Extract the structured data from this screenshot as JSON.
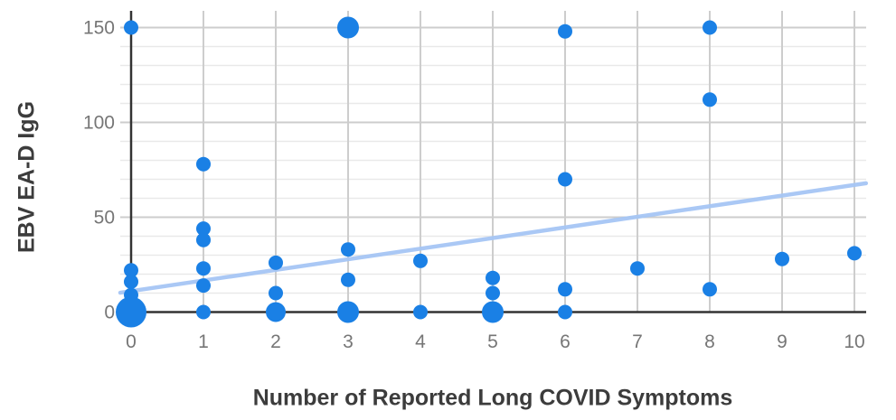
{
  "chart_data": {
    "type": "scatter",
    "xlabel": "Number of Reported Long COVID Symptoms",
    "ylabel": "EBV EA-D IgG",
    "x_ticks": [
      0,
      1,
      2,
      3,
      4,
      5,
      6,
      7,
      8,
      9,
      10
    ],
    "y_ticks": [
      0,
      50,
      100,
      150
    ],
    "xlim": [
      -0.15,
      10.16
    ],
    "ylim": [
      -3,
      159
    ],
    "grid": {
      "horizontal_major": [
        50,
        100,
        150
      ],
      "horizontal_minor": [
        10,
        20,
        30,
        40,
        60,
        70,
        80,
        90,
        110,
        120,
        130,
        140
      ],
      "vertical_major": [
        1,
        2,
        3,
        4,
        5,
        6,
        7,
        8,
        9,
        10
      ]
    },
    "legend": "none",
    "points": [
      {
        "x": 0,
        "y": 150,
        "size": 8
      },
      {
        "x": 0,
        "y": 22,
        "size": 8
      },
      {
        "x": 0,
        "y": 16,
        "size": 8
      },
      {
        "x": 0,
        "y": 9,
        "size": 8
      },
      {
        "x": 0,
        "y": 0,
        "size": 17
      },
      {
        "x": 1,
        "y": 78,
        "size": 8
      },
      {
        "x": 1,
        "y": 44,
        "size": 8
      },
      {
        "x": 1,
        "y": 38,
        "size": 8
      },
      {
        "x": 1,
        "y": 23,
        "size": 8
      },
      {
        "x": 1,
        "y": 14,
        "size": 8
      },
      {
        "x": 1,
        "y": 0,
        "size": 8
      },
      {
        "x": 2,
        "y": 26,
        "size": 8
      },
      {
        "x": 2,
        "y": 10,
        "size": 8
      },
      {
        "x": 2,
        "y": 0,
        "size": 11
      },
      {
        "x": 3,
        "y": 150,
        "size": 12
      },
      {
        "x": 3,
        "y": 33,
        "size": 8
      },
      {
        "x": 3,
        "y": 17,
        "size": 8
      },
      {
        "x": 3,
        "y": 0,
        "size": 12
      },
      {
        "x": 4,
        "y": 27,
        "size": 8
      },
      {
        "x": 4,
        "y": 0,
        "size": 8
      },
      {
        "x": 5,
        "y": 18,
        "size": 8
      },
      {
        "x": 5,
        "y": 10,
        "size": 8
      },
      {
        "x": 5,
        "y": 0,
        "size": 12
      },
      {
        "x": 6,
        "y": 148,
        "size": 8
      },
      {
        "x": 6,
        "y": 70,
        "size": 8
      },
      {
        "x": 6,
        "y": 12,
        "size": 8
      },
      {
        "x": 6,
        "y": 0,
        "size": 8
      },
      {
        "x": 7,
        "y": 23,
        "size": 8
      },
      {
        "x": 8,
        "y": 150,
        "size": 8
      },
      {
        "x": 8,
        "y": 112,
        "size": 8
      },
      {
        "x": 8,
        "y": 12,
        "size": 8
      },
      {
        "x": 9,
        "y": 28,
        "size": 8
      },
      {
        "x": 10,
        "y": 31,
        "size": 8
      }
    ],
    "trendline": {
      "x1": -0.15,
      "y1": 10.2,
      "x2": 10.16,
      "y2": 67.9
    }
  },
  "colors": {
    "point": "#1a80e5",
    "trendline": "#a6c6f5",
    "grid_minor": "#e9e9e9",
    "grid_major": "#cdcdcd",
    "axis_line": "#333333",
    "tick_text": "#767676",
    "title_text": "#3c3c3c",
    "background": "#ffffff"
  }
}
